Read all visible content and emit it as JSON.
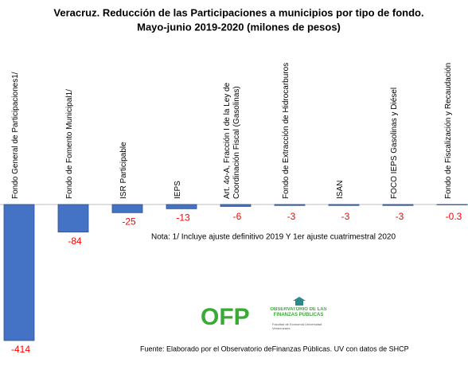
{
  "chart_data": {
    "type": "bar",
    "title": "Veracruz. Reducción de las Participaciones a municipios por tipo de fondo.",
    "subtitle": "Mayo-junio  2019-2020 (milones de pesos)",
    "categories": [
      "Fondo General de  Participaciones1/",
      "Fondo de Fomento Municipal1/",
      "ISR Participable",
      "IEPS",
      "Art. 4o-A, Fracción I  de  la Ley de Coordinación Fiscal  (Gasolinas)",
      "Fondo de Extracción de Hidrocarburos",
      "ISAN",
      "FOCO IEPS Gasolinas y Diésel",
      "Fondo de Fiscalización  y Recaudación"
    ],
    "values": [
      -414,
      -84,
      -25,
      -13,
      -6,
      -3,
      -3,
      -3,
      -0.3
    ],
    "color": "#4472c4",
    "label_color": "#ff0000",
    "note": "Nota: 1/ Incluye  ajuste definitivo 2019 Y 1er ajuste cuatrimestral 2020",
    "source": "Fuente: Elaborado por el Observatorio deFinanzas Públicas. UV con datos de SHCP"
  },
  "logo": {
    "acronym": "OFP",
    "name": "OBSERVATORIO DE LAS FINANZAS PÚBLICAS",
    "faculty": "Facultad de Economía Universidad Veracruzana"
  }
}
